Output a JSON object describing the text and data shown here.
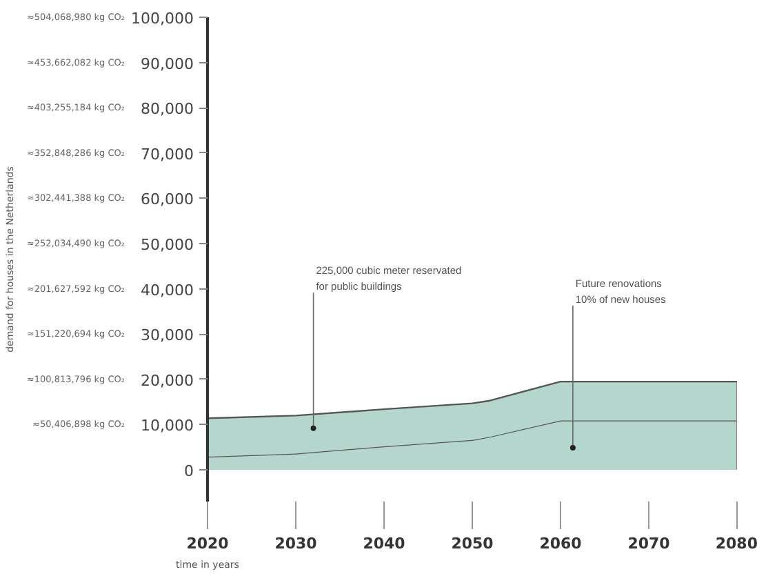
{
  "chart_data": {
    "type": "area",
    "stacked": true,
    "xlabel": "time in years",
    "y2label": "demand for houses in the Netherlands",
    "x": [
      2020,
      2030,
      2040,
      2050,
      2052,
      2060,
      2070,
      2080
    ],
    "series": [
      {
        "color": "#b5d6cc",
        "values": [
          2900,
          3600,
          5200,
          6600,
          7300,
          10900,
          10900,
          10900
        ]
      },
      {
        "color": "#b5d6cc",
        "values": [
          8500,
          8400,
          8200,
          8100,
          8000,
          8600,
          8600,
          8600
        ]
      }
    ],
    "xlim": [
      2020,
      2080
    ],
    "ylim": [
      -7000,
      100000
    ],
    "y2lim": [
      -35284828.6,
      504068980
    ],
    "xticks": [
      2020,
      2030,
      2040,
      2050,
      2060,
      2070,
      2080
    ],
    "yticks": [
      {
        "value": 0,
        "label": "0"
      },
      {
        "value": 10000,
        "label": "10,000"
      },
      {
        "value": 20000,
        "label": "20,000"
      },
      {
        "value": 30000,
        "label": "30,000"
      },
      {
        "value": 40000,
        "label": "40,000"
      },
      {
        "value": 50000,
        "label": "50,000"
      },
      {
        "value": 60000,
        "label": "60,000"
      },
      {
        "value": 70000,
        "label": "70,000"
      },
      {
        "value": 80000,
        "label": "80,000"
      },
      {
        "value": 90000,
        "label": "90,000"
      },
      {
        "value": 100000,
        "label": "100,000"
      }
    ],
    "y2ticks": [
      {
        "value": 50406898,
        "label": "≈50,406,898 kg CO₂"
      },
      {
        "value": 100813796,
        "label": "≈100,813,796 kg CO₂"
      },
      {
        "value": 151220694,
        "label": "≈151,220,694 kg CO₂"
      },
      {
        "value": 201627592,
        "label": "≈201,627,592 kg CO₂"
      },
      {
        "value": 252034490,
        "label": "≈252,034,490 kg CO₂"
      },
      {
        "value": 302441388,
        "label": "≈302,441,388 kg CO₂"
      },
      {
        "value": 352848286,
        "label": "≈352,848,286 kg CO₂"
      },
      {
        "value": 403255184,
        "label": "≈403,255,184 kg CO₂"
      },
      {
        "value": 453662082,
        "label": "≈453,662,082 kg CO₂"
      },
      {
        "value": 504068980,
        "label": "≈504,068,980 kg CO₂"
      }
    ],
    "grid": false,
    "annotations": [
      {
        "text": "225,000 cubic meter reservated\nfor public buildings",
        "x": 2032,
        "y": 9200
      },
      {
        "text": "Future renovations\n10% of new houses",
        "x": 2061.4,
        "y": 4900
      }
    ]
  }
}
